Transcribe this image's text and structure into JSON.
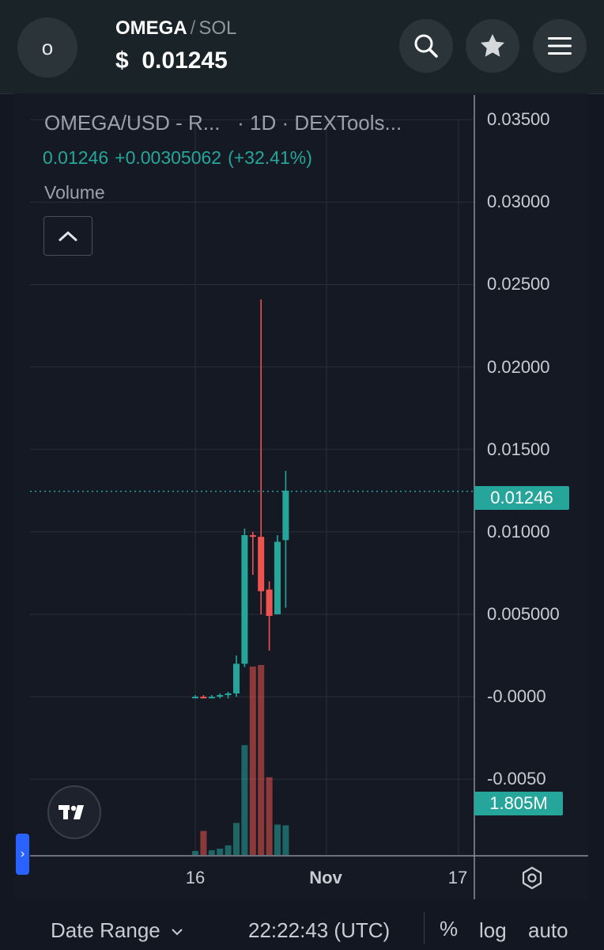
{
  "header": {
    "logo_letter": "o",
    "base": "OMEGA",
    "separator": "/",
    "quote": "SOL",
    "price": "$  0.01245",
    "search_icon": "search-icon",
    "star_icon": "star-icon",
    "menu_icon": "menu-icon"
  },
  "legend": {
    "title": "OMEGA/USD - R...   · 1D · DEXTools...",
    "last": "0.01246",
    "change": "+0.00305062",
    "change_pct": "(+32.41%)",
    "volume_label": "Volume"
  },
  "price_axis": {
    "ticks": [
      "0.03500",
      "0.03000",
      "0.02500",
      "0.02000",
      "0.01500",
      "0.01000",
      "0.005000",
      "-0.0000",
      "-0.0050"
    ],
    "current_price_tag": "0.01246",
    "volume_tag": "1.805M"
  },
  "time_axis": {
    "ticks": [
      "16",
      "Nov",
      "17"
    ]
  },
  "toolbar": {
    "date_range": "Date Range",
    "time": "22:22:43 (UTC)",
    "percent": "%",
    "log": "log",
    "auto": "auto"
  },
  "colors": {
    "up": "#26a69a",
    "down": "#ef5350",
    "background": "#151924",
    "grid": "#2a2e39"
  },
  "chart_data": {
    "type": "candlestick",
    "timeframe": "1D",
    "y_range": [
      -0.0096,
      0.0365
    ],
    "last_price": 0.01246,
    "candles": [
      {
        "o": 0.0,
        "h": 0.0001,
        "l": -0.0001,
        "c": 0.0,
        "v": 0.05
      },
      {
        "o": 0.0,
        "h": 0.0001,
        "l": -0.0001,
        "c": -0.0001,
        "v": 0.3
      },
      {
        "o": 0.0,
        "h": 0.0001,
        "l": -0.0001,
        "c": 0.0,
        "v": 0.06
      },
      {
        "o": 0.0,
        "h": 0.0002,
        "l": -0.0001,
        "c": 0.0001,
        "v": 0.08
      },
      {
        "o": 0.0001,
        "h": 0.0003,
        "l": -0.0001,
        "c": 0.0002,
        "v": 0.12
      },
      {
        "o": 0.0002,
        "h": 0.0025,
        "l": 0.0,
        "c": 0.002,
        "v": 0.4
      },
      {
        "o": 0.002,
        "h": 0.0102,
        "l": 0.0018,
        "c": 0.0098,
        "v": 1.37
      },
      {
        "o": 0.0098,
        "h": 0.01,
        "l": 0.0074,
        "c": 0.0097,
        "v": 2.35
      },
      {
        "o": 0.0097,
        "h": 0.0241,
        "l": 0.005,
        "c": 0.0064,
        "v": 2.37
      },
      {
        "o": 0.0065,
        "h": 0.007,
        "l": 0.0028,
        "c": 0.0049,
        "v": 0.97
      },
      {
        "o": 0.005,
        "h": 0.0098,
        "l": 0.0052,
        "c": 0.0094,
        "v": 0.38
      },
      {
        "o": 0.0095,
        "h": 0.0137,
        "l": 0.0054,
        "c": 0.0125,
        "v": 0.37
      }
    ]
  }
}
